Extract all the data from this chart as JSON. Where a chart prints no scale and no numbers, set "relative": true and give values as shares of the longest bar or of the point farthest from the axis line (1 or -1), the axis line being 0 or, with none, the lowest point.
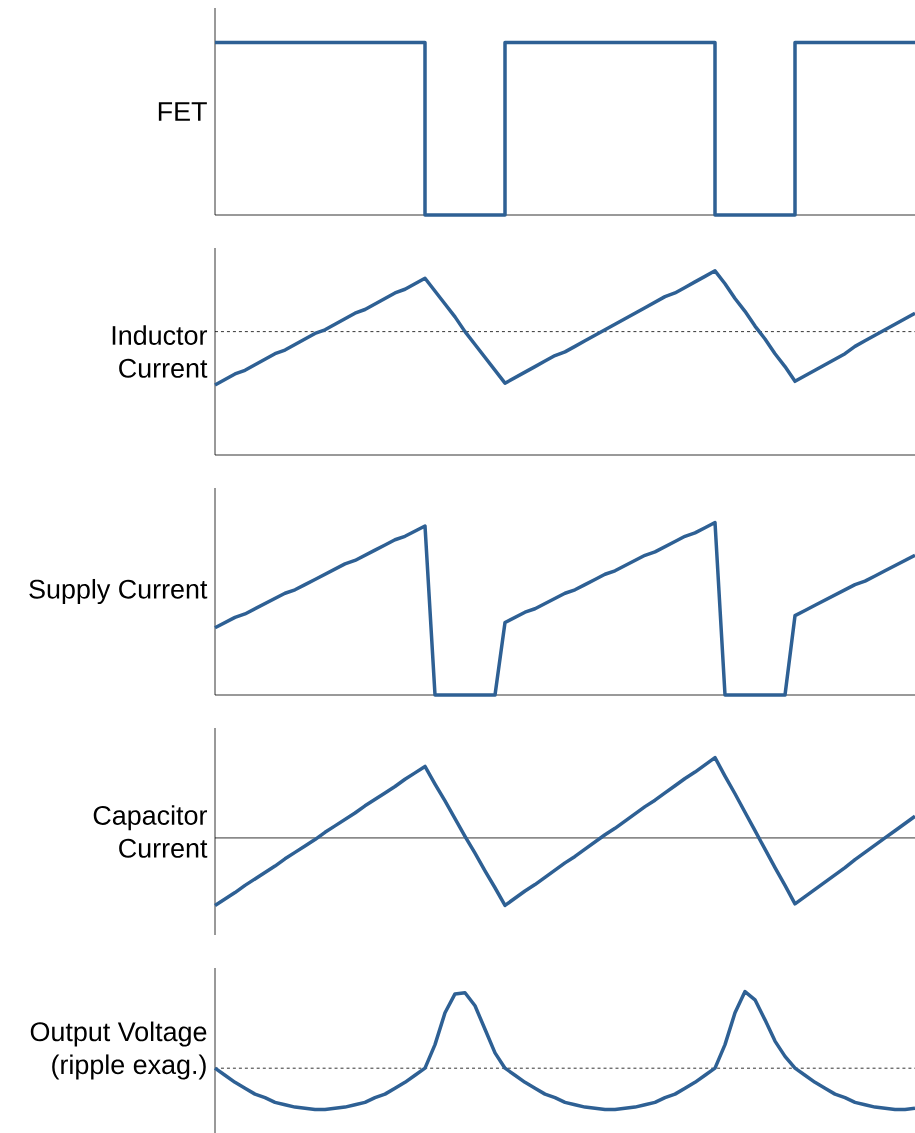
{
  "chart_data": [
    {
      "type": "step",
      "relative": true,
      "ylabel": "FET",
      "line_style": "solid",
      "marker": "none",
      "categories": [
        null,
        null,
        null,
        null,
        null,
        null,
        null,
        null,
        null,
        null,
        null,
        null,
        null,
        null,
        null,
        null,
        null,
        null,
        null,
        null,
        null,
        null,
        null,
        null,
        null,
        null,
        null,
        null,
        null,
        null,
        null,
        null,
        null,
        null,
        null,
        null,
        null,
        null,
        null,
        null,
        null,
        null,
        null,
        null,
        null,
        null,
        null,
        null,
        null,
        null,
        null,
        null,
        null,
        null,
        null,
        null,
        null,
        null,
        null,
        null,
        null,
        null,
        null,
        null,
        null,
        null,
        null,
        null,
        null,
        null,
        null
      ],
      "series": [
        {
          "color": "#2e6094",
          "values": [
            1,
            1,
            1,
            1,
            1,
            1,
            1,
            1,
            1,
            1,
            1,
            1,
            1,
            1,
            1,
            1,
            1,
            1,
            1,
            1,
            1,
            0,
            0,
            0,
            0,
            0,
            0,
            0,
            0,
            1,
            1,
            1,
            1,
            1,
            1,
            1,
            1,
            1,
            1,
            1,
            1,
            1,
            1,
            1,
            1,
            1,
            1,
            1,
            1,
            1,
            0,
            0,
            0,
            0,
            0,
            0,
            0,
            0,
            1,
            1,
            1,
            1,
            1,
            1,
            1,
            1,
            1,
            1,
            1,
            1,
            1
          ]
        }
      ]
    },
    {
      "type": "line",
      "relative": true,
      "ylabel": "Inductor Current",
      "line_style": "solid",
      "marker": "none",
      "categories": [
        null,
        null,
        null,
        null,
        null,
        null,
        null,
        null,
        null,
        null,
        null,
        null,
        null,
        null,
        null,
        null,
        null,
        null,
        null,
        null,
        null,
        null,
        null,
        null,
        null,
        null,
        null,
        null,
        null,
        null,
        null,
        null,
        null,
        null,
        null,
        null,
        null,
        null,
        null,
        null,
        null,
        null,
        null,
        null,
        null,
        null,
        null,
        null,
        null,
        null,
        null,
        null,
        null,
        null,
        null,
        null,
        null,
        null,
        null,
        null,
        null,
        null,
        null,
        null,
        null,
        null,
        null,
        null,
        null,
        null,
        null
      ],
      "series": [
        {
          "color": "#2e6094",
          "values": [
            0.38,
            0.41,
            0.44,
            0.46,
            0.49,
            0.52,
            0.55,
            0.57,
            0.6,
            0.63,
            0.66,
            0.68,
            0.71,
            0.74,
            0.77,
            0.79,
            0.82,
            0.85,
            0.88,
            0.9,
            0.93,
            0.96,
            0.89,
            0.82,
            0.75,
            0.67,
            0.6,
            0.53,
            0.46,
            0.39,
            0.42,
            0.45,
            0.48,
            0.51,
            0.54,
            0.56,
            0.59,
            0.62,
            0.65,
            0.68,
            0.71,
            0.74,
            0.77,
            0.8,
            0.83,
            0.86,
            0.88,
            0.91,
            0.94,
            0.97,
            1,
            0.93,
            0.85,
            0.78,
            0.7,
            0.63,
            0.55,
            0.48,
            0.4,
            0.43,
            0.46,
            0.49,
            0.52,
            0.55,
            0.59,
            0.62,
            0.65,
            0.68,
            0.71,
            0.74,
            0.77
          ]
        }
      ],
      "ref_lines": [
        {
          "axis": "y",
          "value": 0.67,
          "line_style": "dashed",
          "color": "#000000"
        }
      ]
    },
    {
      "type": "line",
      "relative": true,
      "ylabel": "Supply Current",
      "line_style": "solid",
      "marker": "none",
      "categories": [
        null,
        null,
        null,
        null,
        null,
        null,
        null,
        null,
        null,
        null,
        null,
        null,
        null,
        null,
        null,
        null,
        null,
        null,
        null,
        null,
        null,
        null,
        null,
        null,
        null,
        null,
        null,
        null,
        null,
        null,
        null,
        null,
        null,
        null,
        null,
        null,
        null,
        null,
        null,
        null,
        null,
        null,
        null,
        null,
        null,
        null,
        null,
        null,
        null,
        null,
        null,
        null,
        null,
        null,
        null,
        null,
        null,
        null,
        null,
        null,
        null,
        null,
        null,
        null,
        null,
        null,
        null,
        null,
        null,
        null,
        null
      ],
      "series": [
        {
          "color": "#2e6094",
          "values": [
            0.39,
            0.42,
            0.45,
            0.47,
            0.5,
            0.53,
            0.56,
            0.59,
            0.61,
            0.64,
            0.67,
            0.7,
            0.73,
            0.76,
            0.78,
            0.81,
            0.84,
            0.87,
            0.9,
            0.92,
            0.95,
            0.98,
            0,
            0,
            0,
            0,
            0,
            0,
            0,
            0.42,
            0.45,
            0.48,
            0.5,
            0.53,
            0.56,
            0.59,
            0.61,
            0.64,
            0.67,
            0.7,
            0.72,
            0.75,
            0.78,
            0.81,
            0.83,
            0.86,
            0.89,
            0.92,
            0.94,
            0.97,
            1,
            0,
            0,
            0,
            0,
            0,
            0,
            0,
            0.46,
            0.49,
            0.52,
            0.55,
            0.58,
            0.61,
            0.64,
            0.66,
            0.69,
            0.72,
            0.75,
            0.78,
            0.81
          ]
        }
      ]
    },
    {
      "type": "line",
      "relative": true,
      "ylabel": "Capacitor Current",
      "line_style": "solid",
      "marker": "none",
      "categories": [
        null,
        null,
        null,
        null,
        null,
        null,
        null,
        null,
        null,
        null,
        null,
        null,
        null,
        null,
        null,
        null,
        null,
        null,
        null,
        null,
        null,
        null,
        null,
        null,
        null,
        null,
        null,
        null,
        null,
        null,
        null,
        null,
        null,
        null,
        null,
        null,
        null,
        null,
        null,
        null,
        null,
        null,
        null,
        null,
        null,
        null,
        null,
        null,
        null,
        null,
        null,
        null,
        null,
        null,
        null,
        null,
        null,
        null,
        null,
        null,
        null,
        null,
        null,
        null,
        null,
        null,
        null,
        null,
        null,
        null,
        null
      ],
      "series": [
        {
          "color": "#2e6094",
          "values": [
            -0.84,
            -0.76,
            -0.68,
            -0.59,
            -0.51,
            -0.43,
            -0.35,
            -0.26,
            -0.18,
            -0.1,
            -0.02,
            0.07,
            0.15,
            0.23,
            0.31,
            0.4,
            0.48,
            0.56,
            0.64,
            0.73,
            0.81,
            0.89,
            0.67,
            0.46,
            0.24,
            0.02,
            -0.19,
            -0.41,
            -0.62,
            -0.84,
            -0.75,
            -0.66,
            -0.58,
            -0.49,
            -0.4,
            -0.31,
            -0.23,
            -0.14,
            -0.05,
            0.04,
            0.12,
            0.21,
            0.3,
            0.39,
            0.47,
            0.56,
            0.65,
            0.74,
            0.82,
            0.91,
            1,
            0.77,
            0.55,
            0.32,
            0.09,
            -0.14,
            -0.37,
            -0.59,
            -0.82,
            -0.73,
            -0.64,
            -0.55,
            -0.46,
            -0.37,
            -0.27,
            -0.18,
            -0.09,
            0,
            0.09,
            0.18,
            0.27
          ]
        }
      ]
    },
    {
      "type": "line",
      "relative": true,
      "ylabel": "Output Voltage (ripple exag.)",
      "line_style": "solid",
      "marker": "none",
      "categories": [
        null,
        null,
        null,
        null,
        null,
        null,
        null,
        null,
        null,
        null,
        null,
        null,
        null,
        null,
        null,
        null,
        null,
        null,
        null,
        null,
        null,
        null,
        null,
        null,
        null,
        null,
        null,
        null,
        null,
        null,
        null,
        null,
        null,
        null,
        null,
        null,
        null,
        null,
        null,
        null,
        null,
        null,
        null,
        null,
        null,
        null,
        null,
        null,
        null,
        null,
        null,
        null,
        null,
        null,
        null,
        null,
        null,
        null,
        null,
        null,
        null,
        null,
        null,
        null,
        null,
        null,
        null,
        null,
        null,
        null,
        null
      ],
      "series": [
        {
          "color": "#2e6094",
          "values": [
            0.35,
            0.29,
            0.23,
            0.18,
            0.13,
            0.1,
            0.06,
            0.04,
            0.02,
            0.01,
            0,
            0,
            0.01,
            0.02,
            0.04,
            0.06,
            0.1,
            0.13,
            0.18,
            0.23,
            0.29,
            0.35,
            0.55,
            0.82,
            0.98,
            0.99,
            0.88,
            0.68,
            0.48,
            0.35,
            0.29,
            0.23,
            0.18,
            0.13,
            0.1,
            0.06,
            0.04,
            0.02,
            0.01,
            0,
            0,
            0.01,
            0.02,
            0.04,
            0.06,
            0.1,
            0.13,
            0.18,
            0.23,
            0.29,
            0.35,
            0.55,
            0.82,
            1,
            0.93,
            0.76,
            0.58,
            0.45,
            0.35,
            0.29,
            0.23,
            0.18,
            0.13,
            0.1,
            0.06,
            0.04,
            0.02,
            0.01,
            0,
            0,
            0.01
          ]
        }
      ],
      "ref_lines": [
        {
          "axis": "y",
          "value": 0.35,
          "line_style": "dashed",
          "color": "#000000"
        }
      ]
    }
  ]
}
